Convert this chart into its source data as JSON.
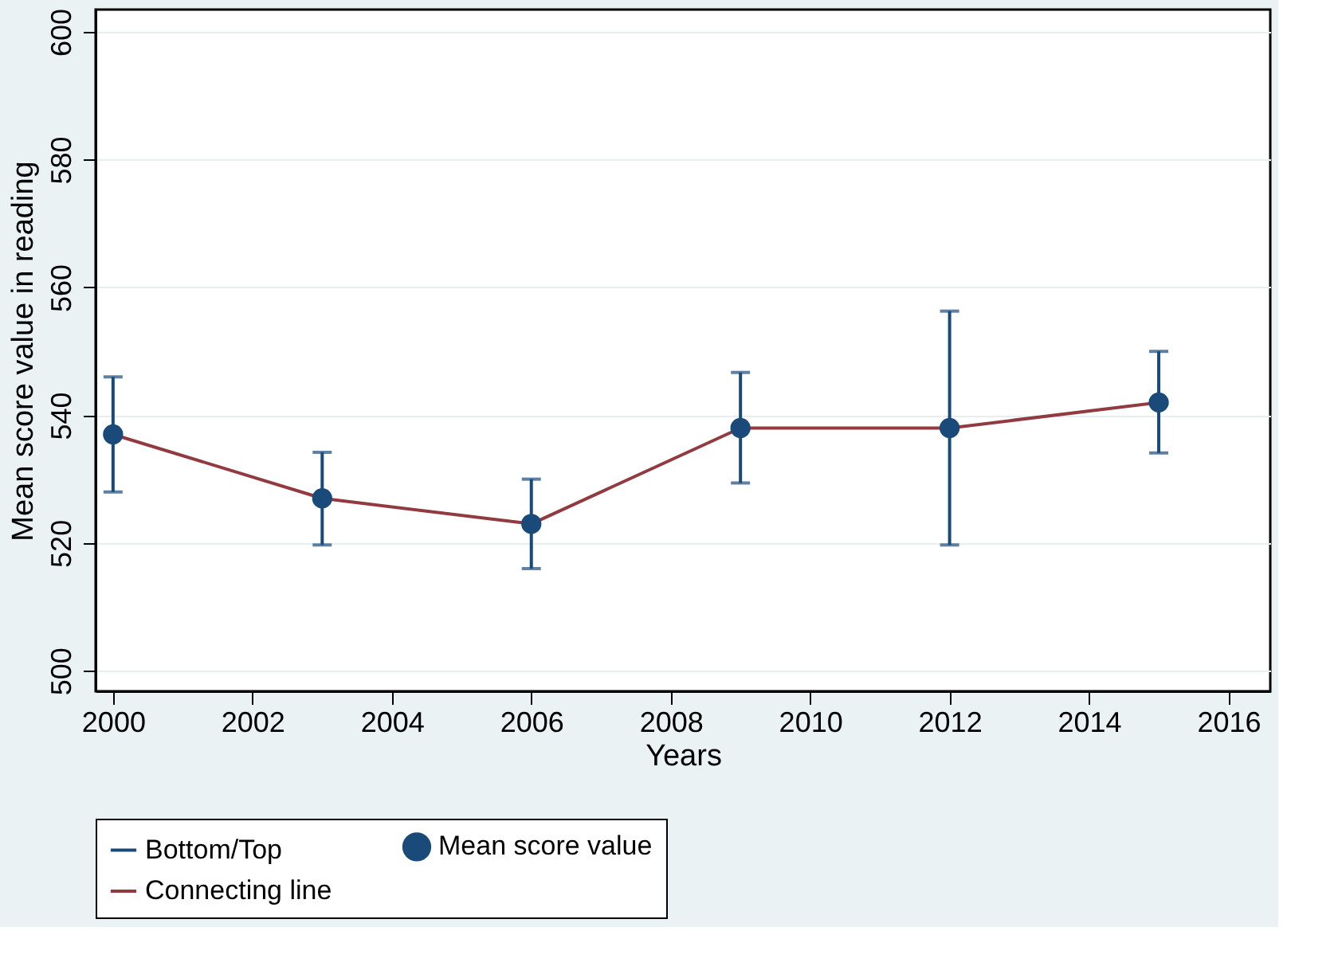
{
  "chart_data": {
    "type": "line",
    "xlabel": "Years",
    "ylabel": "Mean score value in reading",
    "x": [
      2000,
      2003,
      2006,
      2009,
      2012,
      2015
    ],
    "series": [
      {
        "name": "Mean score value",
        "type": "scatter",
        "marker": "circle",
        "color": "#1a4a7a",
        "values": [
          537,
          527,
          523,
          538,
          538,
          542
        ],
        "errors": [
          [
            528,
            546
          ],
          [
            519.7,
            534.2
          ],
          [
            516,
            530
          ],
          [
            529.4,
            546.7
          ],
          [
            519.7,
            556.3
          ],
          [
            534.1,
            550
          ]
        ]
      },
      {
        "name": "Connecting line",
        "color": "#923a40",
        "values": [
          537,
          527,
          523,
          538,
          538,
          542
        ]
      }
    ],
    "annotations": [
      "Bottom/Top"
    ],
    "xlim": [
      1999.75,
      2016.6
    ],
    "xticks": [
      2000,
      2002,
      2004,
      2006,
      2008,
      2010,
      2012,
      2014,
      2016
    ],
    "ylim": [
      496.8,
      603.5
    ],
    "yticks": [
      500,
      520,
      540,
      560,
      580,
      600
    ],
    "grid": "y",
    "legend": "bottom",
    "line_style": "solid"
  }
}
